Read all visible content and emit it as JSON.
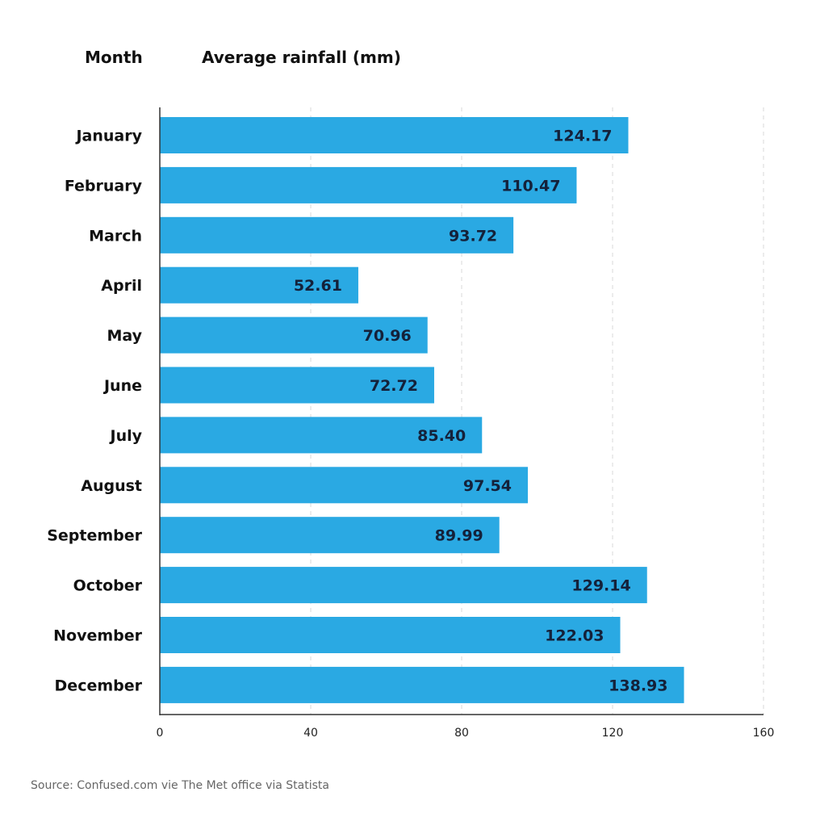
{
  "chart_data": {
    "type": "bar",
    "orientation": "horizontal",
    "category_header": "Month",
    "value_header": "Average rainfall (mm)",
    "categories": [
      "January",
      "February",
      "March",
      "April",
      "May",
      "June",
      "July",
      "August",
      "September",
      "October",
      "November",
      "December"
    ],
    "values": [
      124.17,
      110.47,
      93.72,
      52.61,
      70.96,
      72.72,
      85.4,
      97.54,
      89.99,
      129.14,
      122.03,
      138.93
    ],
    "value_labels": [
      "124.17",
      "110.47",
      "93.72",
      "52.61",
      "70.96",
      "72.72",
      "85.40",
      "97.54",
      "89.99",
      "129.14",
      "122.03",
      "138.93"
    ],
    "x_ticks": [
      0,
      40,
      80,
      120,
      160
    ],
    "x_tick_labels": [
      "0",
      "40",
      "80",
      "120",
      "160"
    ],
    "xlim": [
      0,
      160
    ],
    "grid": "vertical dashed",
    "legend": "none",
    "bar_color": "#2aa9e3",
    "source": "Source: Confused.com vie The Met office via Statista"
  }
}
